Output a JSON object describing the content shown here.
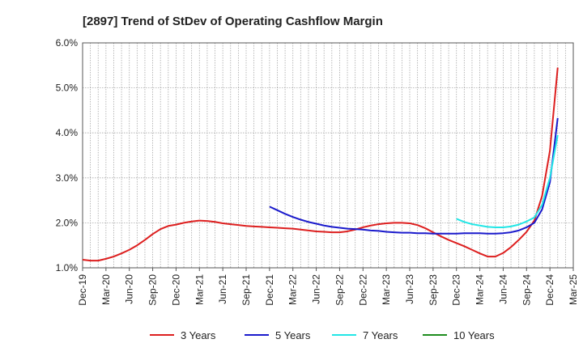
{
  "chart_data": {
    "type": "line",
    "title": "[2897]  Trend of StDev of Operating Cashflow Margin",
    "xlabel": "",
    "ylabel": "",
    "ylim": [
      1.0,
      6.0
    ],
    "x_ticks": [
      "Dec-19",
      "Mar-20",
      "Jun-20",
      "Sep-20",
      "Dec-20",
      "Mar-21",
      "Jun-21",
      "Sep-21",
      "Dec-21",
      "Mar-22",
      "Jun-22",
      "Sep-22",
      "Dec-22",
      "Mar-23",
      "Jun-23",
      "Sep-23",
      "Dec-23",
      "Mar-24",
      "Jun-24",
      "Sep-24",
      "Dec-24",
      "Mar-25"
    ],
    "y_ticks": [
      "1.0%",
      "2.0%",
      "3.0%",
      "4.0%",
      "5.0%",
      "6.0%"
    ],
    "y_tick_values": [
      1.0,
      2.0,
      3.0,
      4.0,
      5.0,
      6.0
    ],
    "grid": true,
    "legend_position": "bottom",
    "series": [
      {
        "name": "3 Years",
        "color": "#dd1f1f",
        "points": [
          [
            "2019-12",
            1.18
          ],
          [
            "2020-01",
            1.16
          ],
          [
            "2020-02",
            1.16
          ],
          [
            "2020-03",
            1.2
          ],
          [
            "2020-04",
            1.25
          ],
          [
            "2020-05",
            1.32
          ],
          [
            "2020-06",
            1.4
          ],
          [
            "2020-07",
            1.5
          ],
          [
            "2020-08",
            1.62
          ],
          [
            "2020-09",
            1.75
          ],
          [
            "2020-10",
            1.86
          ],
          [
            "2020-11",
            1.93
          ],
          [
            "2020-12",
            1.96
          ],
          [
            "2021-01",
            2.0
          ],
          [
            "2021-02",
            2.03
          ],
          [
            "2021-03",
            2.05
          ],
          [
            "2021-04",
            2.04
          ],
          [
            "2021-05",
            2.02
          ],
          [
            "2021-06",
            1.99
          ],
          [
            "2021-07",
            1.97
          ],
          [
            "2021-08",
            1.95
          ],
          [
            "2021-09",
            1.93
          ],
          [
            "2021-10",
            1.92
          ],
          [
            "2021-11",
            1.91
          ],
          [
            "2021-12",
            1.9
          ],
          [
            "2022-01",
            1.89
          ],
          [
            "2022-02",
            1.88
          ],
          [
            "2022-03",
            1.87
          ],
          [
            "2022-04",
            1.85
          ],
          [
            "2022-05",
            1.83
          ],
          [
            "2022-06",
            1.81
          ],
          [
            "2022-07",
            1.8
          ],
          [
            "2022-08",
            1.79
          ],
          [
            "2022-09",
            1.79
          ],
          [
            "2022-10",
            1.81
          ],
          [
            "2022-11",
            1.85
          ],
          [
            "2022-12",
            1.9
          ],
          [
            "2023-01",
            1.94
          ],
          [
            "2023-02",
            1.97
          ],
          [
            "2023-03",
            1.99
          ],
          [
            "2023-04",
            2.0
          ],
          [
            "2023-05",
            2.0
          ],
          [
            "2023-06",
            1.99
          ],
          [
            "2023-07",
            1.95
          ],
          [
            "2023-08",
            1.88
          ],
          [
            "2023-09",
            1.79
          ],
          [
            "2023-10",
            1.7
          ],
          [
            "2023-11",
            1.62
          ],
          [
            "2023-12",
            1.55
          ],
          [
            "2024-01",
            1.48
          ],
          [
            "2024-02",
            1.4
          ],
          [
            "2024-03",
            1.32
          ],
          [
            "2024-04",
            1.25
          ],
          [
            "2024-05",
            1.25
          ],
          [
            "2024-06",
            1.33
          ],
          [
            "2024-07",
            1.46
          ],
          [
            "2024-08",
            1.62
          ],
          [
            "2024-09",
            1.8
          ],
          [
            "2024-10",
            2.05
          ],
          [
            "2024-11",
            2.6
          ],
          [
            "2024-12",
            3.6
          ],
          [
            "2025-01",
            5.45
          ]
        ]
      },
      {
        "name": "5 Years",
        "color": "#1a1acc",
        "points": [
          [
            "2021-12",
            2.36
          ],
          [
            "2022-01",
            2.28
          ],
          [
            "2022-02",
            2.2
          ],
          [
            "2022-03",
            2.13
          ],
          [
            "2022-04",
            2.07
          ],
          [
            "2022-05",
            2.02
          ],
          [
            "2022-06",
            1.98
          ],
          [
            "2022-07",
            1.94
          ],
          [
            "2022-08",
            1.91
          ],
          [
            "2022-09",
            1.89
          ],
          [
            "2022-10",
            1.87
          ],
          [
            "2022-11",
            1.86
          ],
          [
            "2022-12",
            1.85
          ],
          [
            "2023-01",
            1.83
          ],
          [
            "2023-02",
            1.82
          ],
          [
            "2023-03",
            1.8
          ],
          [
            "2023-04",
            1.79
          ],
          [
            "2023-05",
            1.78
          ],
          [
            "2023-06",
            1.78
          ],
          [
            "2023-07",
            1.77
          ],
          [
            "2023-08",
            1.77
          ],
          [
            "2023-09",
            1.76
          ],
          [
            "2023-10",
            1.76
          ],
          [
            "2023-11",
            1.76
          ],
          [
            "2023-12",
            1.76
          ],
          [
            "2024-01",
            1.77
          ],
          [
            "2024-02",
            1.77
          ],
          [
            "2024-03",
            1.77
          ],
          [
            "2024-04",
            1.76
          ],
          [
            "2024-05",
            1.76
          ],
          [
            "2024-06",
            1.77
          ],
          [
            "2024-07",
            1.79
          ],
          [
            "2024-08",
            1.83
          ],
          [
            "2024-09",
            1.9
          ],
          [
            "2024-10",
            2.0
          ],
          [
            "2024-11",
            2.3
          ],
          [
            "2024-12",
            2.9
          ],
          [
            "2025-01",
            4.33
          ]
        ]
      },
      {
        "name": "7 Years",
        "color": "#22e6e6",
        "points": [
          [
            "2023-12",
            2.09
          ],
          [
            "2024-01",
            2.02
          ],
          [
            "2024-02",
            1.97
          ],
          [
            "2024-03",
            1.94
          ],
          [
            "2024-04",
            1.91
          ],
          [
            "2024-05",
            1.9
          ],
          [
            "2024-06",
            1.9
          ],
          [
            "2024-07",
            1.92
          ],
          [
            "2024-08",
            1.96
          ],
          [
            "2024-09",
            2.03
          ],
          [
            "2024-10",
            2.12
          ],
          [
            "2024-11",
            2.4
          ],
          [
            "2024-12",
            3.0
          ],
          [
            "2025-01",
            3.95
          ]
        ]
      },
      {
        "name": "10 Years",
        "color": "#1e8c1e",
        "points": []
      }
    ]
  }
}
